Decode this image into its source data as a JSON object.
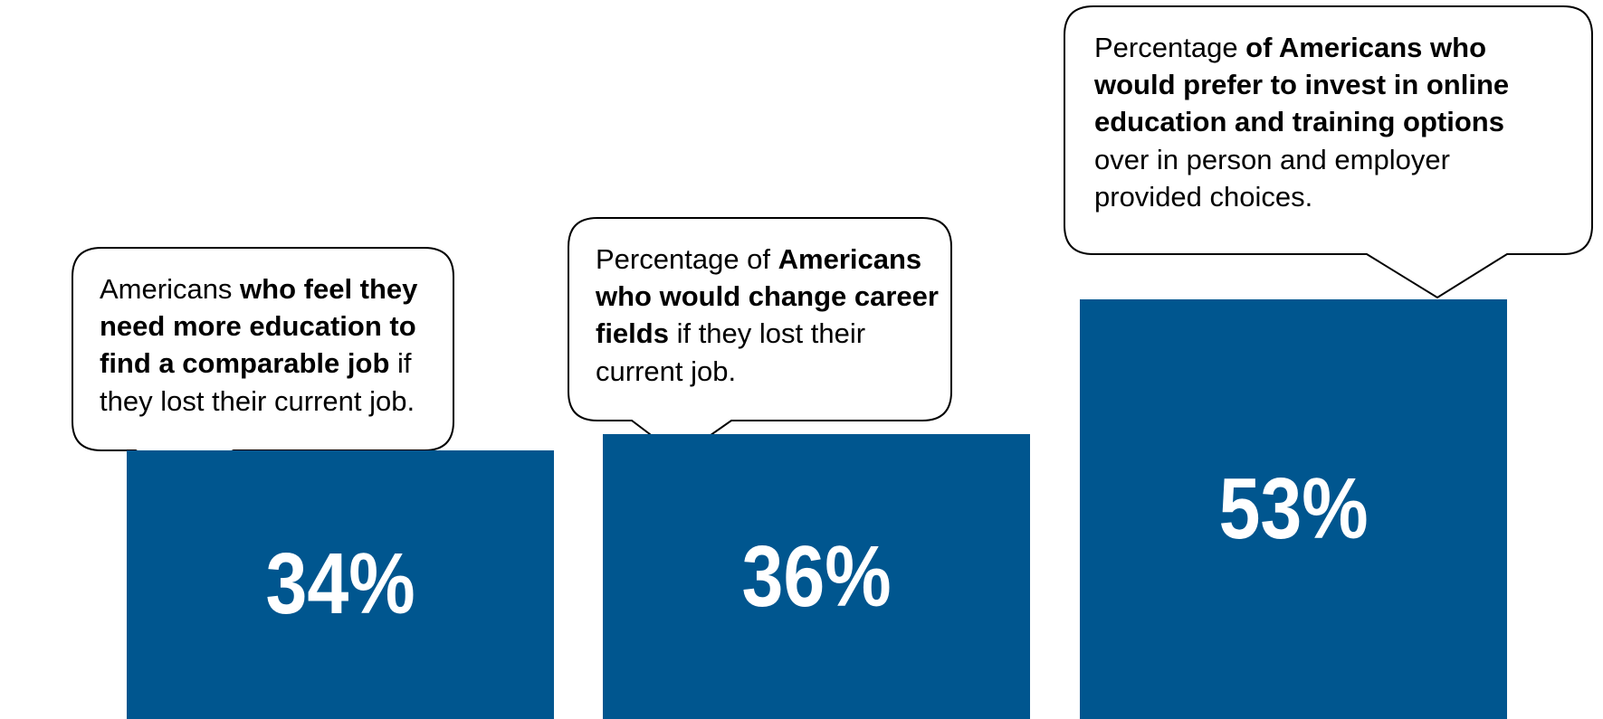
{
  "chart_data": {
    "type": "bar",
    "value_suffix": "%",
    "bar_color": "#00568F",
    "categories": [
      "Americans who feel they need more education to find a comparable job if they lost their current job.",
      "Percentage of Americans who would change career fields if they lost their current job.",
      "Percentage of Americans who would prefer to invest in online education and training options over in person and employer provided choices."
    ],
    "values": [
      34,
      36,
      53
    ],
    "callouts": [
      {
        "segments": [
          {
            "text": "Americans ",
            "bold": false
          },
          {
            "text": "who feel they need more education  to find a comparable job",
            "bold": true
          },
          {
            "text": " if they lost their current job.",
            "bold": false
          }
        ]
      },
      {
        "segments": [
          {
            "text": "Percentage of ",
            "bold": false
          },
          {
            "text": "Americans who would change career fields",
            "bold": true
          },
          {
            "text": " if they lost their current job.",
            "bold": false
          }
        ]
      },
      {
        "segments": [
          {
            "text": "Percentage ",
            "bold": false
          },
          {
            "text": "of Americans who would prefer to invest in online education and training options",
            "bold": true
          },
          {
            "text": " over in person and employer provided choices.",
            "bold": false
          }
        ]
      }
    ],
    "ylim": [
      0,
      65
    ],
    "grid": false,
    "legend": "none",
    "title": "",
    "xlabel": "",
    "ylabel": ""
  }
}
